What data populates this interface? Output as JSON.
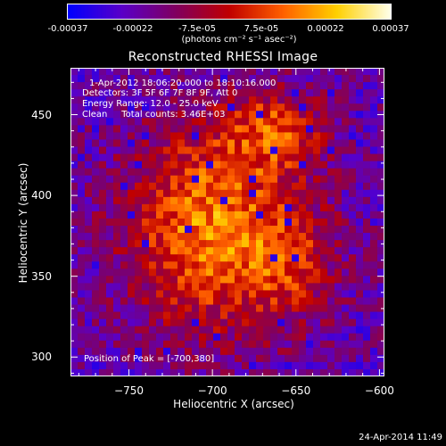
{
  "colorbar": {
    "ticks": [
      "-0.00037",
      "-0.00022",
      "-7.5e-05",
      "7.5e-05",
      "0.00022",
      "0.00037"
    ],
    "unit": "(photons cm⁻² s⁻¹ asec⁻²)",
    "colors": [
      "#0000ff",
      "#5a00c8",
      "#800060",
      "#c00000",
      "#ff6000",
      "#ffd000",
      "#ffffe8"
    ]
  },
  "chart_data": {
    "type": "heatmap",
    "title": "Reconstructed RHESSI Image",
    "xlabel": "Heliocentric X (arcsec)",
    "ylabel": "Heliocentric Y (arcsec)",
    "xlim": [
      -785,
      -597
    ],
    "ylim": [
      288,
      479
    ],
    "x_ticks": [
      "−750",
      "−700",
      "−650",
      "−600"
    ],
    "x_tick_values": [
      -750,
      -700,
      -650,
      -600
    ],
    "y_ticks": [
      "450",
      "400",
      "350",
      "300"
    ],
    "y_tick_values": [
      450,
      400,
      350,
      300
    ],
    "peak": {
      "x": -700,
      "y": 380
    },
    "value_range": [
      -0.00037,
      0.00037
    ],
    "annotations": [
      "1-Apr-2012 18:06:20.000 to 18:10:16.000",
      "Detectors: 3F 5F 6F 7F 8F 9F, Att 0",
      "Energy Range: 12.0 - 25.0 keV",
      "Clean     Total counts: 3.46E+03"
    ],
    "peak_label": "Position of Peak = [-700,380]"
  },
  "timestamp": "24-Apr-2014 11:49"
}
